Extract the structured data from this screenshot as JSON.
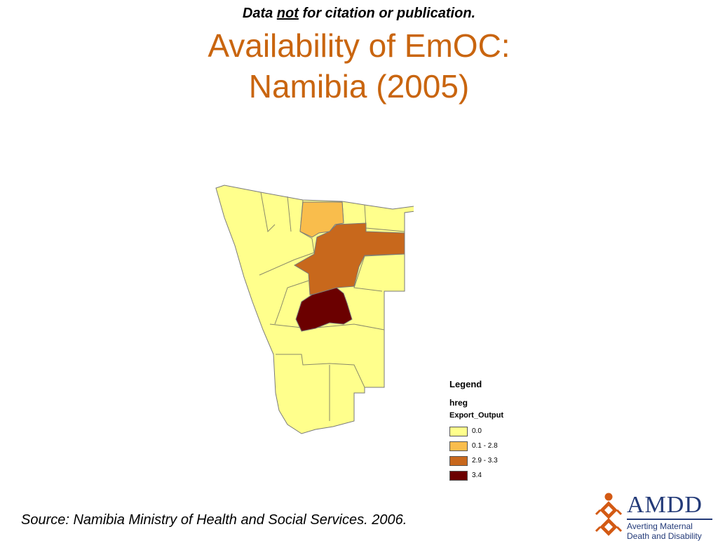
{
  "disclaimer": {
    "before": "Data ",
    "emphasis": "not",
    "after": " for citation or publication."
  },
  "title": {
    "line1": "Availability of EmOC:",
    "line2": "Namibia (2005)"
  },
  "legend": {
    "heading": "Legend",
    "layer": "hreg",
    "field": "Export_Output",
    "classes": [
      {
        "label": "0.0",
        "color": "#ffff8c"
      },
      {
        "label": "0.1 - 2.8",
        "color": "#f9bd4c"
      },
      {
        "label": "2.9 - 3.3",
        "color": "#c8681c"
      },
      {
        "label": "3.4",
        "color": "#6b0000"
      }
    ]
  },
  "map_colors": {
    "outline": "#7a7a7a",
    "region_border": "#8a8a6a"
  },
  "source": "Source: Namibia Ministry of Health and Social Services. 2006.",
  "logo": {
    "name": "AMDD",
    "tagline_1": "Averting Maternal",
    "tagline_2": "Death and Disability",
    "color_primary": "#233a78",
    "color_icon": "#d35a14"
  }
}
